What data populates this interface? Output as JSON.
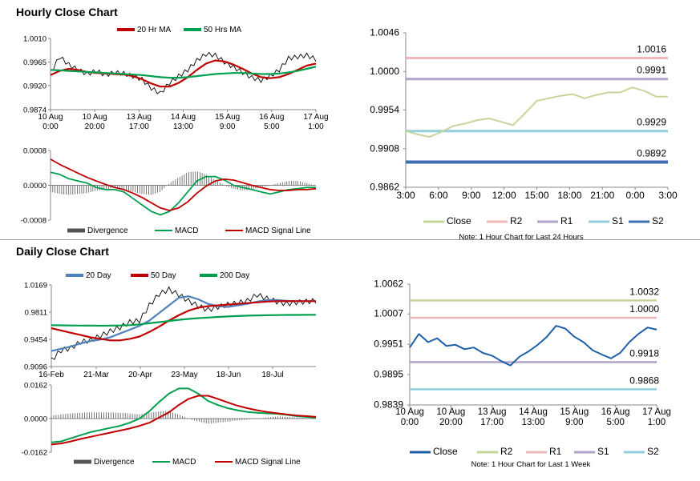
{
  "sections": {
    "hourly_title": "Hourly Close Chart",
    "daily_title": "Daily Close Chart"
  },
  "colors": {
    "price": "#000000",
    "ma_short": "#c00000",
    "ma_long": "#00a050",
    "ma_20day": "#4f81bd",
    "hist": "#555555",
    "close_light": "#c4d79b",
    "close_dark": "#1f5fa8",
    "r2": "#f2b8b8",
    "r1": "#b3a2c7",
    "s1": "#92cddc",
    "s2": "#3e6cb0",
    "r2_daily": "#c4d79b",
    "r1_daily": "#e6b8b7",
    "s1_daily": "#b3a2c7",
    "s2_daily": "#92cddc"
  },
  "chart_data": [
    {
      "id": "hourly_price",
      "type": "line",
      "legend": [
        "20 Hr MA",
        "50 Hrs MA"
      ],
      "ylim": [
        0.9874,
        1.001
      ],
      "yticks": [
        "0.9874",
        "0.9920",
        "0.9965",
        "1.0010"
      ],
      "xticks": [
        [
          "10 Aug",
          "0:00"
        ],
        [
          "10 Aug",
          "20:00"
        ],
        [
          "13 Aug",
          "17:00"
        ],
        [
          "14 Aug",
          "13:00"
        ],
        [
          "15 Aug",
          "9:00"
        ],
        [
          "16 Aug",
          "5:00"
        ],
        [
          "17 Aug",
          "1:00"
        ]
      ],
      "price": [
        0.9945,
        0.9975,
        0.996,
        0.995,
        0.9942,
        0.9948,
        0.994,
        0.9945,
        0.9943,
        0.9938,
        0.9932,
        0.9915,
        0.9905,
        0.9925,
        0.9938,
        0.995,
        0.9968,
        0.998,
        0.9978,
        0.9965,
        0.9955,
        0.9945,
        0.9935,
        0.993,
        0.9938,
        0.995,
        0.9972,
        0.9975,
        0.9978,
        0.997
      ],
      "ma20": [
        0.994,
        0.9948,
        0.9952,
        0.995,
        0.9946,
        0.9944,
        0.9943,
        0.9942,
        0.9941,
        0.9938,
        0.9932,
        0.9924,
        0.9918,
        0.9918,
        0.9925,
        0.9936,
        0.995,
        0.9962,
        0.9968,
        0.9966,
        0.996,
        0.9952,
        0.9943,
        0.9936,
        0.9934,
        0.9936,
        0.9942,
        0.995,
        0.9958,
        0.9962
      ],
      "ma50": [
        0.995,
        0.9949,
        0.9948,
        0.9947,
        0.9946,
        0.9945,
        0.9944,
        0.9943,
        0.9942,
        0.9941,
        0.994,
        0.9938,
        0.9936,
        0.9935,
        0.9935,
        0.9936,
        0.9938,
        0.994,
        0.9942,
        0.9943,
        0.9944,
        0.9944,
        0.9943,
        0.9942,
        0.9942,
        0.9943,
        0.9945,
        0.9948,
        0.9952,
        0.9956
      ]
    },
    {
      "id": "hourly_macd",
      "type": "line",
      "legend": [
        "Divergence",
        "MACD",
        "MACD Signal Line"
      ],
      "ylim": [
        -0.0008,
        0.0008
      ],
      "yticks": [
        "-0.0008",
        "0.0000",
        "0.0008"
      ],
      "divergence": [
        -0.00015,
        -0.0002,
        -0.00022,
        -0.0002,
        -0.00018,
        -0.00012,
        -0.0001,
        -5e-05,
        -0.0001,
        -0.00015,
        -0.0002,
        -0.00022,
        -0.00015,
        5e-05,
        0.00018,
        0.0003,
        0.00032,
        0.00025,
        0.00012,
        0.0,
        -8e-05,
        -0.00012,
        -0.0001,
        -5e-05,
        0.0,
        5e-05,
        0.0001,
        0.0001,
        5e-05,
        0.0
      ],
      "macd": [
        0.0003,
        0.00025,
        0.00015,
        0.0001,
        5e-05,
        -5e-05,
        -0.0001,
        -0.0001,
        -0.00015,
        -0.0003,
        -0.00045,
        -0.0006,
        -0.00068,
        -0.0006,
        -0.0004,
        -0.00015,
        0.0001,
        0.0002,
        0.0002,
        0.00012,
        0.0,
        -5e-05,
        -0.0001,
        -0.00015,
        -0.0002,
        -0.00015,
        -0.0001,
        -8e-05,
        -5e-05,
        -5e-05
      ],
      "signal": [
        0.0006,
        0.00048,
        0.00038,
        0.00028,
        0.00018,
        0.0001,
        2e-05,
        -5e-05,
        -0.0001,
        -0.00018,
        -0.00028,
        -0.0004,
        -0.00052,
        -0.00058,
        -0.00052,
        -0.00038,
        -0.00018,
        -2e-05,
        0.0001,
        0.00014,
        0.00012,
        6e-05,
        0.0,
        -5e-05,
        -0.0001,
        -0.00012,
        -0.00012,
        -0.0001,
        -0.0001,
        -8e-05
      ]
    },
    {
      "id": "hourly_close_24h",
      "type": "line",
      "ylim": [
        0.9862,
        1.0046
      ],
      "yticks": [
        "0.9862",
        "0.9908",
        "0.9954",
        "1.0000",
        "1.0046"
      ],
      "xticks": [
        "3:00",
        "6:00",
        "9:00",
        "12:00",
        "15:00",
        "18:00",
        "21:00",
        "0:00",
        "3:00"
      ],
      "close": [
        0.9929,
        0.9925,
        0.9922,
        0.9928,
        0.9935,
        0.9938,
        0.9942,
        0.9944,
        0.994,
        0.9936,
        0.995,
        0.9965,
        0.9968,
        0.9971,
        0.9973,
        0.9968,
        0.9972,
        0.9975,
        0.9975,
        0.9981,
        0.9977,
        0.997,
        0.997
      ],
      "levels": [
        {
          "name": "R2",
          "value": 1.0016,
          "label": "1.0016"
        },
        {
          "name": "R1",
          "value": 0.9991,
          "label": "0.9991"
        },
        {
          "name": "S1",
          "value": 0.9929,
          "label": "0.9929"
        },
        {
          "name": "S2",
          "value": 0.9892,
          "label": "0.9892"
        }
      ],
      "legend": [
        "Close",
        "R2",
        "R1",
        "S1",
        "S2"
      ],
      "note": "Note: 1 Hour Chart for Last 24 Hours"
    },
    {
      "id": "daily_price",
      "type": "line",
      "legend": [
        "20 Day",
        "50 Day",
        "200 Day"
      ],
      "ylim": [
        0.9096,
        1.0169
      ],
      "yticks": [
        "0.9096",
        "0.9454",
        "0.9811",
        "1.0169"
      ],
      "xticks": [
        "16-Feb",
        "21-Mar",
        "20-Apr",
        "23-May",
        "18-Jun",
        "18-Jul"
      ],
      "price": [
        0.918,
        0.931,
        0.934,
        0.942,
        0.944,
        0.95,
        0.956,
        0.961,
        0.968,
        0.97,
        0.99,
        1.005,
        1.011,
        1.004,
        0.996,
        0.989,
        0.984,
        0.988,
        0.991,
        0.993,
        0.996,
        1.004,
        0.999,
        0.995,
        0.992,
        0.994,
        0.995,
        0.996
      ],
      "ma20": [
        0.93,
        0.933,
        0.936,
        0.94,
        0.943,
        0.945,
        0.948,
        0.953,
        0.958,
        0.963,
        0.97,
        0.98,
        0.99,
        1.0,
        1.002,
        0.998,
        0.992,
        0.989,
        0.988,
        0.99,
        0.992,
        0.995,
        0.997,
        0.997,
        0.996,
        0.9955,
        0.9955,
        0.9955
      ],
      "ma50": [
        0.96,
        0.957,
        0.954,
        0.951,
        0.948,
        0.946,
        0.944,
        0.944,
        0.946,
        0.949,
        0.955,
        0.962,
        0.97,
        0.977,
        0.983,
        0.987,
        0.989,
        0.99,
        0.991,
        0.992,
        0.993,
        0.994,
        0.995,
        0.9955,
        0.9955,
        0.9955,
        0.9955,
        0.9955
      ],
      "ma200": [
        0.964,
        0.9638,
        0.9636,
        0.9635,
        0.9634,
        0.9633,
        0.9634,
        0.9636,
        0.964,
        0.965,
        0.9665,
        0.968,
        0.9695,
        0.971,
        0.9722,
        0.9732,
        0.974,
        0.9748,
        0.9755,
        0.976,
        0.9765,
        0.9768,
        0.977,
        0.9772,
        0.9774,
        0.9775,
        0.9776,
        0.9777
      ]
    },
    {
      "id": "daily_macd",
      "type": "line",
      "legend": [
        "Divergence",
        "MACD",
        "MACD Signal Line"
      ],
      "ylim": [
        -0.0162,
        0.0162
      ],
      "yticks": [
        "-0.0162",
        "0.0000",
        "0.0162"
      ],
      "divergence": [
        0.0015,
        0.002,
        0.0025,
        0.0028,
        0.003,
        0.003,
        0.003,
        0.0028,
        0.0025,
        0.002,
        0.0028,
        0.0035,
        0.0035,
        0.002,
        0.0,
        -0.0015,
        -0.0025,
        -0.002,
        -0.0015,
        -0.001,
        -0.0005,
        0.0,
        0.0005,
        0.001,
        0.0008,
        0.0005,
        0.0003,
        0.0002
      ],
      "macd": [
        -0.0115,
        -0.011,
        -0.0095,
        -0.008,
        -0.0065,
        -0.0055,
        -0.0045,
        -0.0035,
        -0.002,
        0.0,
        0.0035,
        0.008,
        0.012,
        0.0145,
        0.0145,
        0.012,
        0.0085,
        0.0065,
        0.005,
        0.004,
        0.0032,
        0.0028,
        0.0025,
        0.0023,
        0.0018,
        0.0012,
        0.0008,
        0.0005
      ],
      "signal": [
        -0.0125,
        -0.012,
        -0.011,
        -0.0098,
        -0.0088,
        -0.0078,
        -0.0068,
        -0.0058,
        -0.0048,
        -0.0035,
        -0.002,
        0.0005,
        0.003,
        0.0065,
        0.0095,
        0.011,
        0.011,
        0.0095,
        0.0078,
        0.0062,
        0.005,
        0.004,
        0.0032,
        0.0026,
        0.002,
        0.0015,
        0.0012,
        0.0008
      ]
    },
    {
      "id": "daily_close_week",
      "type": "line",
      "ylim": [
        0.9839,
        1.0062
      ],
      "yticks": [
        "0.9839",
        "0.9895",
        "0.9951",
        "1.0007",
        "1.0062"
      ],
      "xticks": [
        [
          "10 Aug",
          "0:00"
        ],
        [
          "10 Aug",
          "20:00"
        ],
        [
          "13 Aug",
          "17:00"
        ],
        [
          "14 Aug",
          "13:00"
        ],
        [
          "15 Aug",
          "9:00"
        ],
        [
          "16 Aug",
          "5:00"
        ],
        [
          "17 Aug",
          "1:00"
        ]
      ],
      "close": [
        0.9945,
        0.997,
        0.9955,
        0.9962,
        0.9948,
        0.995,
        0.9942,
        0.9945,
        0.9935,
        0.993,
        0.992,
        0.9912,
        0.9928,
        0.9938,
        0.995,
        0.9965,
        0.9985,
        0.998,
        0.9965,
        0.9955,
        0.994,
        0.9932,
        0.9925,
        0.9935,
        0.9955,
        0.997,
        0.9982,
        0.9978
      ],
      "levels": [
        {
          "name": "R2",
          "value": 1.0032,
          "label": "1.0032"
        },
        {
          "name": "R1",
          "value": 1.0,
          "label": "1.0000"
        },
        {
          "name": "S1",
          "value": 0.9918,
          "label": "0.9918"
        },
        {
          "name": "S2",
          "value": 0.9868,
          "label": "0.9868"
        }
      ],
      "legend": [
        "Close",
        "R2",
        "R1",
        "S1",
        "S2"
      ],
      "note": "Note: 1 Hour Chart for Last 1 Week"
    }
  ]
}
